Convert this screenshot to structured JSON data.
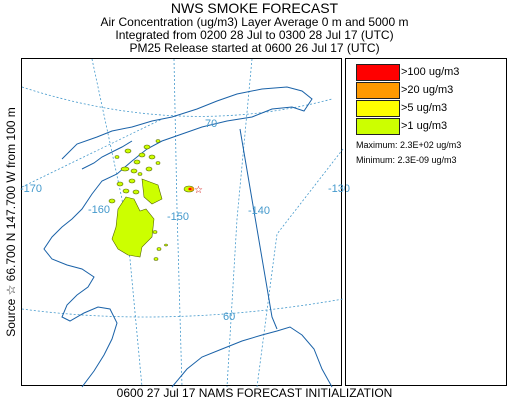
{
  "header": {
    "title": "NWS SMOKE FORECAST",
    "line2": "Air Concentration (ug/m3) Layer Average    0 m  and  5000 m",
    "line3": "Integrated from 0200 28 Jul to 0300 28 Jul 17 (UTC)",
    "line4": "PM25 Release started at 0600 26 Jul 17 (UTC)"
  },
  "side_label": "Source ☆ 66.700 N 147.700 W    from 100 m",
  "footer": "0600 27 Jul 17 NAMS FORECAST INITIALIZATION",
  "legend": {
    "items": [
      {
        "label": ">100 ug/m3",
        "color": "#ff0000"
      },
      {
        "label": ">20 ug/m3",
        "color": "#ff9900"
      },
      {
        "label": ">5 ug/m3",
        "color": "#ffff00"
      },
      {
        "label": ">1 ug/m3",
        "color": "#ccff00"
      }
    ],
    "maximum": "Maximum: 2.3E+02 ug/m3",
    "minimum": "Minimum: 2.3E-09 ug/m3"
  },
  "chart_data": {
    "type": "heatmap",
    "source": {
      "lat": 66.7,
      "lon": -147.7
    },
    "longitude_labels": [
      "-170",
      "-160",
      "-150",
      "-140",
      "-130"
    ],
    "latitude_labels": [
      "70",
      "60"
    ],
    "colors": {
      "grid": "#4499cc",
      "coast": "#1a62a8",
      "border": "#1a62a8",
      "source_marker": "#cc0000"
    }
  }
}
